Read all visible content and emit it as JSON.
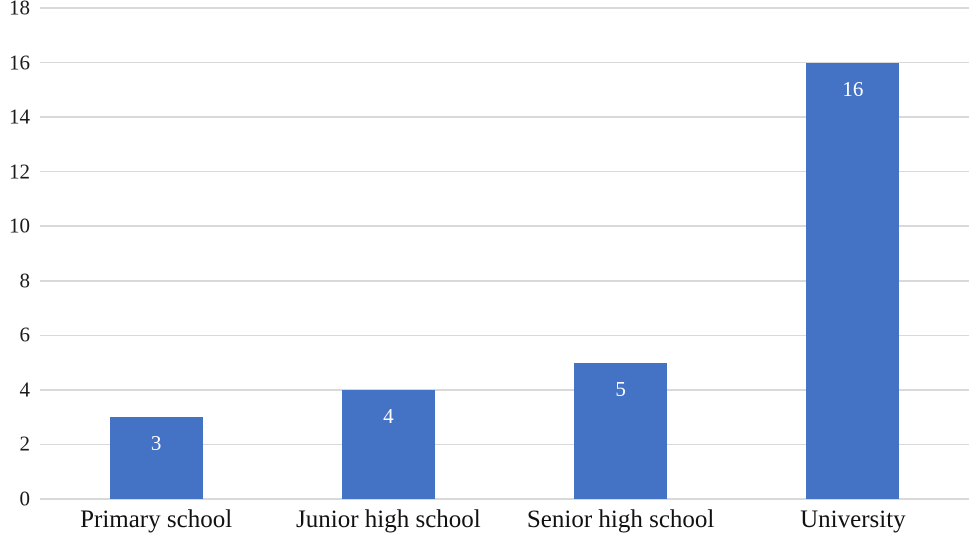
{
  "chart_data": {
    "type": "bar",
    "title": "",
    "xlabel": "",
    "ylabel": "",
    "categories": [
      "Primary school",
      "Junior high school",
      "Senior high school",
      "University"
    ],
    "values": [
      3,
      4,
      5,
      16
    ],
    "data_labels": [
      "3",
      "4",
      "5",
      "16"
    ],
    "data_label_position": "inside-end",
    "y_ticks": [
      0,
      2,
      4,
      6,
      8,
      10,
      12,
      14,
      16,
      18
    ],
    "ylim": [
      0,
      18
    ],
    "grid": true,
    "legend": "none",
    "colors": {
      "bar": "#4472C4",
      "gridline": "#D9D9D9",
      "data_label_text": "#FFFFFF",
      "axis_text": "#1A1A1A",
      "background": "#FFFFFF"
    }
  }
}
